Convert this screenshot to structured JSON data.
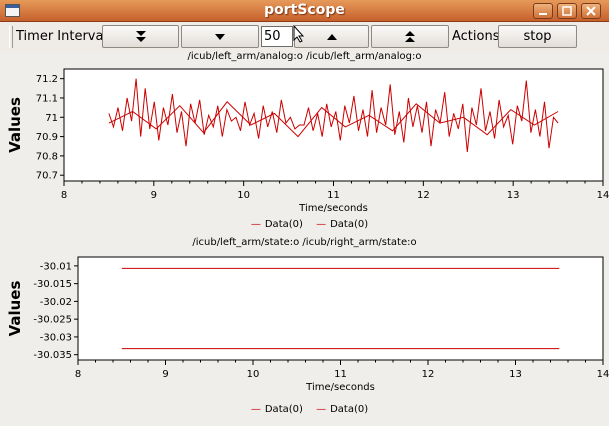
{
  "window": {
    "title": "portScope",
    "controls": [
      "minimize-icon",
      "maximize-icon",
      "close-icon"
    ]
  },
  "toolbar": {
    "timer_interval_label": "Timer Interval",
    "buttons": [
      "double-down-arrow-icon",
      "down-arrow-icon",
      "up-arrow-icon",
      "double-up-arrow-icon"
    ],
    "interval_value": "50",
    "actions_label": "Actions",
    "stop_label": "stop"
  },
  "plots": [
    {
      "title": "/icub/left_arm/analog:o /icub/left_arm/analog:o",
      "legend": [
        "Data(0)",
        "Data(0)"
      ]
    },
    {
      "title": "/icub/left_arm/state:o /icub/right_arm/state:o",
      "legend": [
        "Data(0)",
        "Data(0)"
      ]
    }
  ],
  "chart_data": [
    {
      "type": "line",
      "title": "/icub/left_arm/analog:o /icub/left_arm/analog:o",
      "xlabel": "Time/seconds",
      "ylabel": "Values",
      "xlim": [
        8,
        14
      ],
      "ylim": [
        70.67,
        71.25
      ],
      "xticks": [
        "8",
        "9",
        "10",
        "11",
        "12",
        "13",
        "14"
      ],
      "yticks": [
        "70.7",
        "70.8",
        "70.9",
        "71",
        "71.1",
        "71.2"
      ],
      "series": [
        {
          "name": "Data(0)",
          "color": "#cc0000",
          "x_range": [
            8.5,
            13.5
          ],
          "values": [
            71.02,
            70.95,
            71.05,
            70.93,
            71.1,
            70.98,
            71.2,
            70.9,
            71.15,
            70.94,
            71.08,
            70.88,
            71.05,
            70.96,
            71.12,
            70.92,
            71.03,
            70.85,
            71.07,
            70.97,
            71.09,
            70.91,
            71.01,
            70.95,
            71.06,
            70.9,
            71.04,
            70.98,
            71.0,
            70.93,
            71.08,
            70.96,
            71.02,
            70.89,
            71.06,
            70.95,
            71.03,
            70.92,
            71.09,
            70.97,
            71.0,
            70.94,
            70.96,
            70.96,
            71.05,
            70.93,
            71.02,
            70.9,
            71.07,
            70.95,
            71.03,
            70.88,
            71.06,
            70.97,
            71.11,
            70.93,
            71.04,
            70.9,
            71.14,
            70.92,
            71.05,
            70.96,
            71.17,
            70.91,
            71.03,
            70.87,
            71.1,
            70.95,
            71.06,
            70.92,
            71.08,
            70.85,
            71.04,
            70.97,
            71.13,
            70.9,
            71.02,
            70.94,
            71.07,
            70.82,
            71.05,
            70.96,
            71.15,
            70.93,
            71.03,
            70.89,
            71.09,
            70.95,
            71.01,
            70.86,
            71.06,
            70.98,
            71.19,
            70.92,
            71.04,
            70.9,
            71.08,
            70.84,
            71.0,
            70.97
          ]
        },
        {
          "name": "Data(0)",
          "color": "#cc0000",
          "x_range": [
            8.5,
            13.5
          ],
          "values": [
            70.97,
            71.03,
            70.94,
            71.06,
            70.92,
            71.08,
            70.96,
            71.02,
            70.9,
            71.05,
            70.95,
            71.01,
            70.93,
            71.07,
            70.97,
            71.0,
            70.91,
            71.04,
            70.96,
            71.03
          ]
        }
      ]
    },
    {
      "type": "line",
      "title": "/icub/left_arm/state:o /icub/right_arm/state:o",
      "xlabel": "Time/seconds",
      "ylabel": "Values",
      "xlim": [
        8,
        14
      ],
      "ylim": [
        -30.0365,
        -30.0075
      ],
      "xticks": [
        "8",
        "9",
        "10",
        "11",
        "12",
        "13",
        "14"
      ],
      "yticks": [
        "-30.01",
        "-30.015",
        "-30.02",
        "-30.025",
        "-30.03",
        "-30.035"
      ],
      "series": [
        {
          "name": "Data(0)",
          "color": "#cc0000",
          "x": [
            8.5,
            13.5
          ],
          "values": [
            -30.0107,
            -30.0107
          ]
        },
        {
          "name": "Data(0)",
          "color": "#cc0000",
          "x": [
            8.5,
            13.5
          ],
          "values": [
            -30.0333,
            -30.0333
          ]
        }
      ]
    }
  ]
}
